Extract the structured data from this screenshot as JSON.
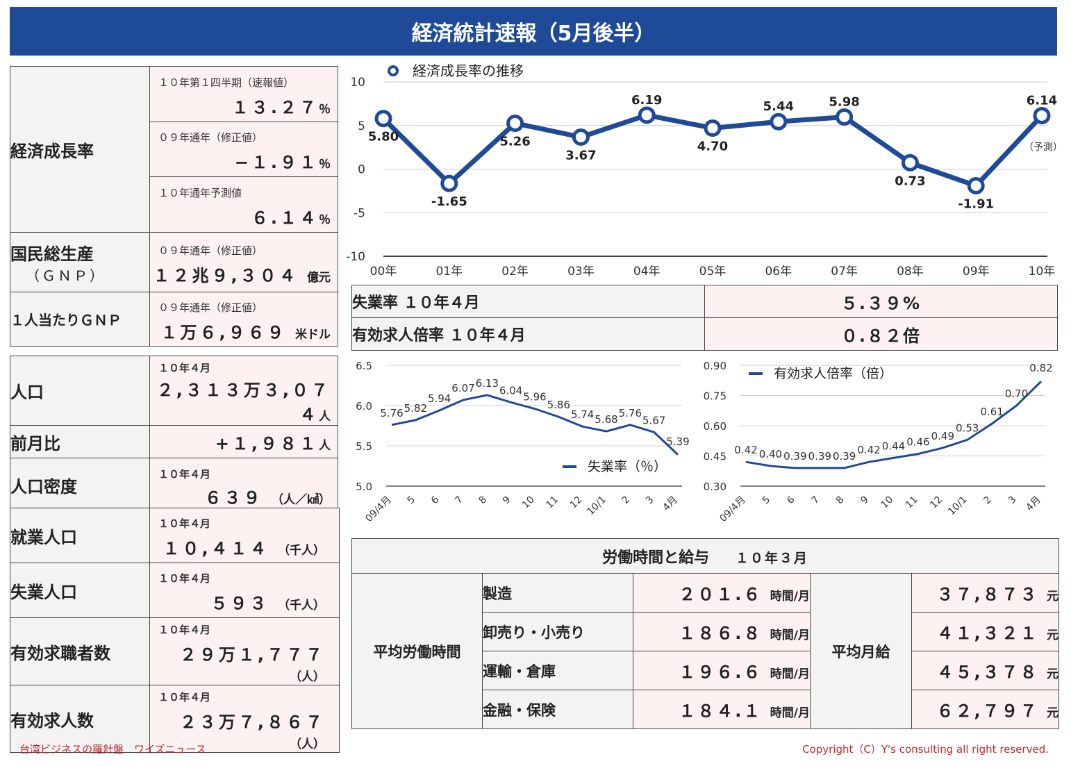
{
  "header": {
    "title": "経済統計速報（5月後半）"
  },
  "growth_table": {
    "label": "経済成長率",
    "rows": [
      {
        "period": "１０年第１四半期（速報値）",
        "value": "１３.２７",
        "unit": "％"
      },
      {
        "period": "０９年通年（修正値）",
        "value": "−１.９１",
        "unit": "％"
      },
      {
        "period": "１０年通年予測値",
        "value": "６.１４",
        "unit": "％"
      }
    ]
  },
  "gnp": {
    "label": "国民総生産",
    "sublabel": "（ＧＮＰ）",
    "period": "０９年通年（修正値）",
    "value": "１２兆９,３０４",
    "unit": "億元"
  },
  "gnp_per_capita": {
    "label": "１人当たりＧＮＰ",
    "period": "０９年通年（修正値）",
    "value": "１万６,９６９",
    "unit": "米ドル"
  },
  "population": {
    "label": "人口",
    "period": "１０年４月",
    "value": "２,３１３万３,０７４",
    "unit": "人",
    "change_label": "前月比",
    "change_value": "+１,９８１",
    "change_unit": "人",
    "density_label": "人口密度",
    "density_period": "１０年４月",
    "density_value": "６３９",
    "density_unit": "（人／㎢）"
  },
  "employment": [
    {
      "label": "就業人口",
      "period": "１０年４月",
      "value": "１０,４１４",
      "unit": "（千人）"
    },
    {
      "label": "失業人口",
      "period": "１０年４月",
      "value": "５９３",
      "unit": "（千人）"
    },
    {
      "label": "有効求職者数",
      "period": "１０年４月",
      "value": "２９万１,７７７",
      "unit": "（人）"
    },
    {
      "label": "有効求人数",
      "period": "１０年４月",
      "value": "２３万７,８６７",
      "unit": "（人）"
    }
  ],
  "indicators": [
    {
      "label": "失業率 １０年４月",
      "value": "５.３９%"
    },
    {
      "label": "有効求人倍率 １０年４月",
      "value": "０.８２倍"
    }
  ],
  "wages": {
    "title": "労働時間と給与",
    "period": "１０年３月",
    "hours_label": "平均労働時間",
    "salary_label": "平均月給",
    "rows": [
      {
        "sector": "製造",
        "hours": "２０１.６",
        "hours_unit": "時間/月",
        "salary": "３７,８７３",
        "salary_unit": "元"
      },
      {
        "sector": "卸売り・小売り",
        "hours": "１８６.８",
        "hours_unit": "時間/月",
        "salary": "４１,３２１",
        "salary_unit": "元"
      },
      {
        "sector": "運輸・倉庫",
        "hours": "１９６.６",
        "hours_unit": "時間/月",
        "salary": "４５,３７８",
        "salary_unit": "元"
      },
      {
        "sector": "金融・保険",
        "hours": "１８４.１",
        "hours_unit": "時間/月",
        "salary": "６２,７９７",
        "salary_unit": "元"
      }
    ]
  },
  "footer": {
    "left": "台湾ビジネスの羅針盤　ワイズニュース",
    "right": "Copyright（C）Y's consulting all right reserved."
  },
  "chart_data": [
    {
      "type": "line",
      "title": "",
      "legend": "経済成長率の推移",
      "legend_position": "top-left",
      "categories": [
        "00年",
        "01年",
        "02年",
        "03年",
        "04年",
        "05年",
        "06年",
        "07年",
        "08年",
        "09年",
        "10年"
      ],
      "values": [
        5.8,
        -1.65,
        5.26,
        3.67,
        6.19,
        4.7,
        5.44,
        5.98,
        0.73,
        -1.91,
        6.14
      ],
      "labels": [
        "5.80",
        "-1.65",
        "5.26",
        "3.67",
        "6.19",
        "4.70",
        "5.44",
        "5.98",
        "0.73",
        "-1.91",
        "6.14"
      ],
      "annotation": "（予測）",
      "ylim": [
        -10,
        10
      ],
      "yticks": [
        "10",
        "5",
        "0",
        "-5",
        "-10"
      ],
      "color": "#1f4a97",
      "grid": true
    },
    {
      "type": "line",
      "legend": "失業率（％）",
      "legend_position": "bottom-right",
      "categories": [
        "09/4月",
        "5",
        "6",
        "7",
        "8",
        "9",
        "10",
        "11",
        "12",
        "10/1",
        "2",
        "3",
        "4月"
      ],
      "values": [
        5.76,
        5.82,
        5.94,
        6.07,
        6.13,
        6.04,
        5.96,
        5.86,
        5.74,
        5.68,
        5.76,
        5.67,
        5.39
      ],
      "ylim": [
        5.0,
        6.5
      ],
      "yticks": [
        "6.5",
        "6.0",
        "5.5",
        "5.0"
      ],
      "color": "#1f4a97",
      "grid": true
    },
    {
      "type": "line",
      "legend": "有効求人倍率（倍）",
      "legend_position": "top-left",
      "categories": [
        "09/4月",
        "5",
        "6",
        "7",
        "8",
        "9",
        "10",
        "11",
        "12",
        "10/1",
        "2",
        "3",
        "4月"
      ],
      "values": [
        0.42,
        0.4,
        0.39,
        0.39,
        0.39,
        0.42,
        0.44,
        0.46,
        0.49,
        0.53,
        0.61,
        0.7,
        0.82
      ],
      "ylim": [
        0.3,
        0.9
      ],
      "yticks": [
        "0.90",
        "0.75",
        "0.60",
        "0.45",
        "0.30"
      ],
      "color": "#1f4a97",
      "grid": true
    }
  ]
}
